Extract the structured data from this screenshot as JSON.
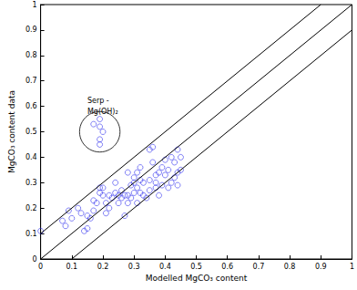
{
  "chart_data": {
    "type": "scatter",
    "x_label": "Modelled MgCO₃ content",
    "y_label": "MgCO₃ content data",
    "xlim": [
      0,
      1
    ],
    "ylim": [
      0,
      1
    ],
    "xticks": [
      0,
      0.1,
      0.2,
      0.3,
      0.4,
      0.5,
      0.6,
      0.7,
      0.8,
      0.9,
      1
    ],
    "yticks": [
      0,
      0.1,
      0.2,
      0.3,
      0.4,
      0.5,
      0.6,
      0.7,
      0.8,
      0.9,
      1
    ],
    "grid": false,
    "series": [
      {
        "type": "scatter",
        "marker": "circle",
        "color": "#3c3cf0",
        "x": [
          0,
          0.17,
          0.19,
          0.19,
          0.2,
          0.19,
          0.19,
          0.07,
          0.08,
          0.09,
          0.1,
          0.12,
          0.13,
          0.14,
          0.15,
          0.15,
          0.16,
          0.17,
          0.17,
          0.18,
          0.19,
          0.19,
          0.2,
          0.2,
          0.21,
          0.21,
          0.22,
          0.22,
          0.23,
          0.24,
          0.24,
          0.25,
          0.25,
          0.26,
          0.26,
          0.27,
          0.27,
          0.28,
          0.28,
          0.28,
          0.29,
          0.29,
          0.3,
          0.3,
          0.3,
          0.31,
          0.31,
          0.31,
          0.32,
          0.32,
          0.32,
          0.33,
          0.33,
          0.34,
          0.35,
          0.35,
          0.35,
          0.36,
          0.36,
          0.37,
          0.37,
          0.37,
          0.38,
          0.38,
          0.39,
          0.39,
          0.4,
          0.4,
          0.41,
          0.41,
          0.42,
          0.42,
          0.43,
          0.43,
          0.44,
          0.44,
          0.44,
          0.45,
          0.45
        ],
        "values": [
          0.11,
          0.53,
          0.55,
          0.52,
          0.5,
          0.47,
          0.45,
          0.15,
          0.13,
          0.19,
          0.16,
          0.2,
          0.18,
          0.11,
          0.12,
          0.17,
          0.16,
          0.19,
          0.23,
          0.22,
          0.26,
          0.28,
          0.28,
          0.25,
          0.22,
          0.18,
          0.25,
          0.2,
          0.24,
          0.26,
          0.3,
          0.25,
          0.22,
          0.24,
          0.27,
          0.25,
          0.17,
          0.22,
          0.34,
          0.25,
          0.29,
          0.24,
          0.3,
          0.32,
          0.26,
          0.34,
          0.28,
          0.22,
          0.31,
          0.36,
          0.26,
          0.3,
          0.25,
          0.24,
          0.31,
          0.27,
          0.43,
          0.44,
          0.38,
          0.33,
          0.28,
          0.3,
          0.34,
          0.25,
          0.29,
          0.36,
          0.33,
          0.39,
          0.35,
          0.28,
          0.3,
          0.4,
          0.38,
          0.32,
          0.43,
          0.34,
          0.29,
          0.35,
          0.4
        ]
      },
      {
        "type": "line",
        "line_style": "solid",
        "color": "#000000",
        "x": [
          0,
          1
        ],
        "values": [
          0,
          1
        ]
      },
      {
        "type": "line",
        "line_style": "solid",
        "color": "#000000",
        "x": [
          0,
          0.9
        ],
        "values": [
          0.1,
          1
        ]
      },
      {
        "type": "line",
        "line_style": "solid",
        "color": "#000000",
        "x": [
          0.1,
          1
        ],
        "values": [
          0,
          0.9
        ]
      }
    ],
    "circles": [
      {
        "x": 0.19,
        "y": 0.5,
        "r": 0.065
      }
    ],
    "annotations": [
      {
        "text": "Serp -\nMg(OH)₂",
        "x": 0.15,
        "y": 0.6
      }
    ]
  }
}
